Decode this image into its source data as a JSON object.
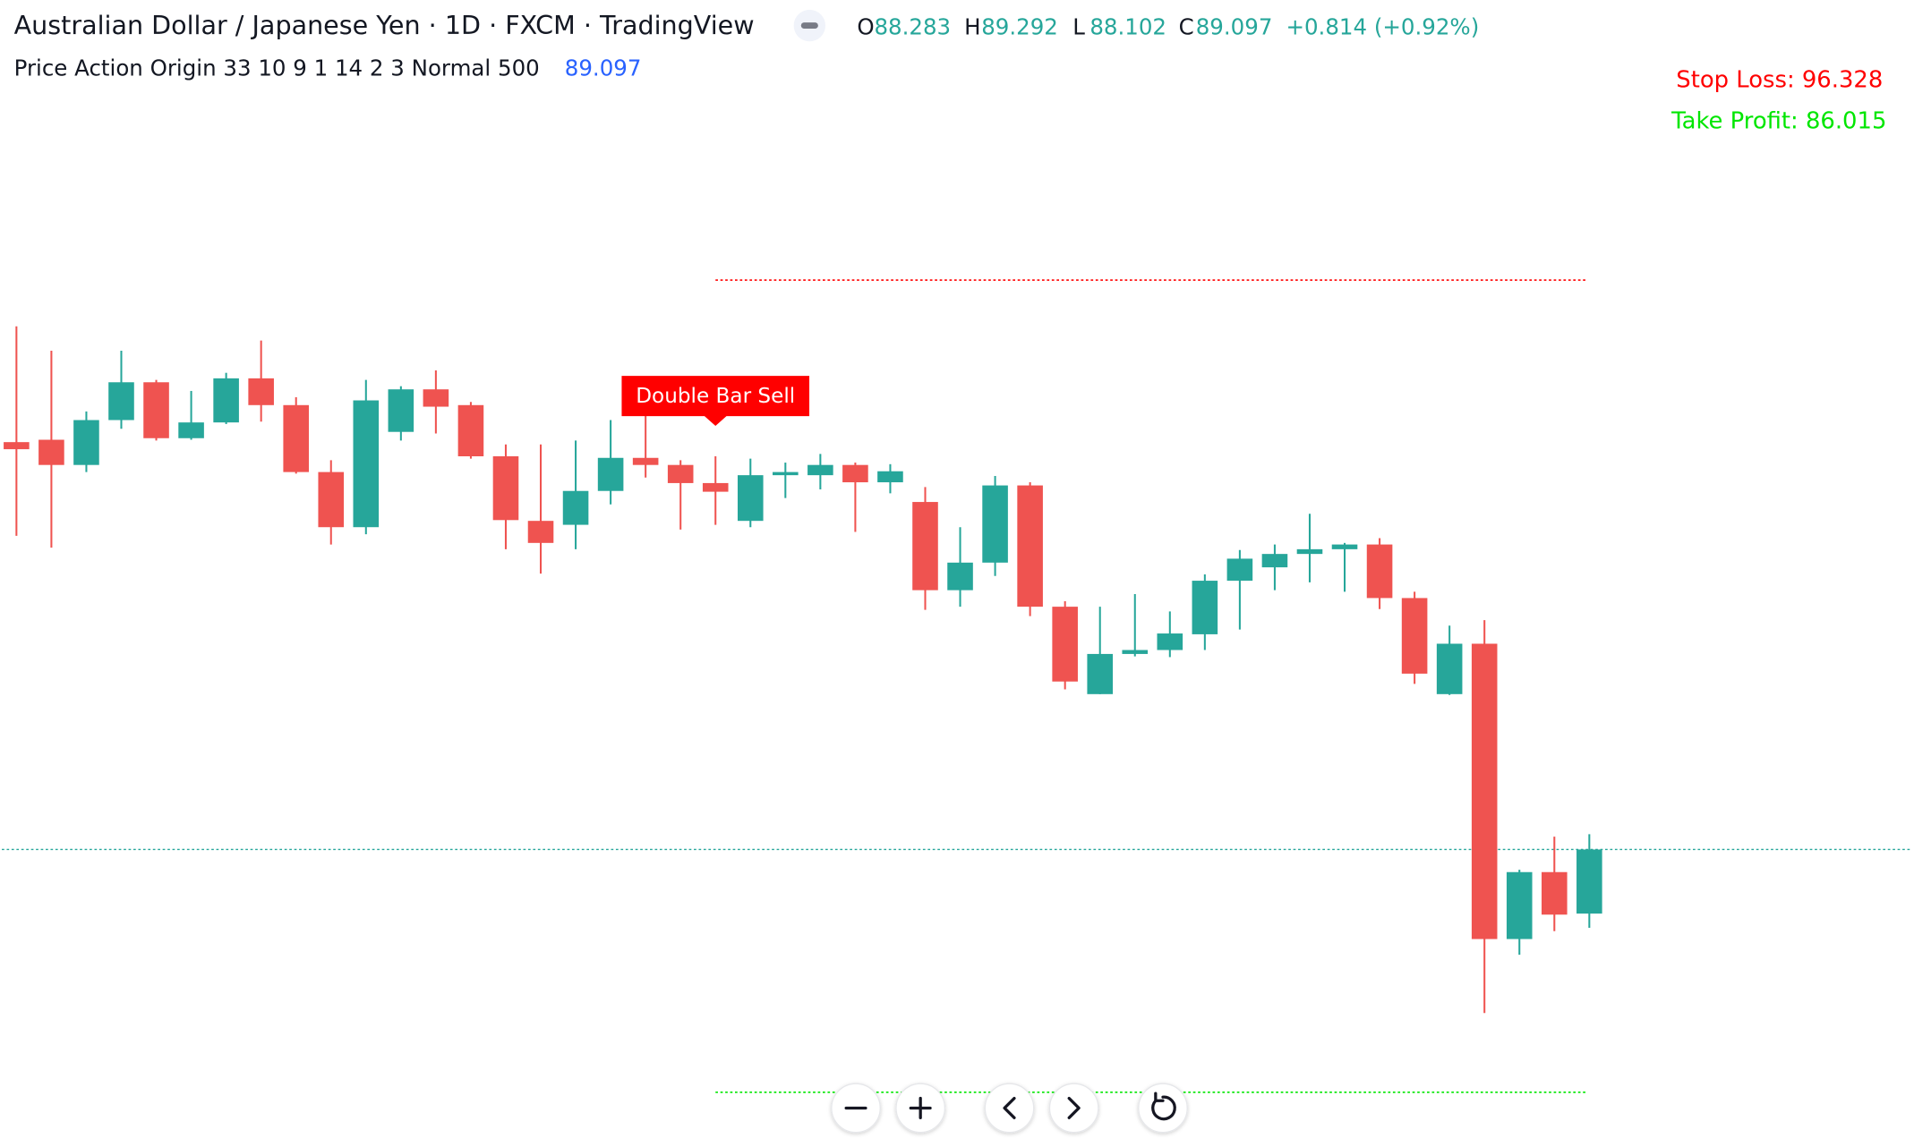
{
  "chart_data": {
    "type": "candlestick",
    "title": "Australian Dollar / Japanese Yen · 1D · FXCM · TradingView",
    "ohlc_letters": [
      "O",
      "H",
      "L",
      "C"
    ],
    "change": "+0.814 (+0.92%)",
    "indicator": "Price Action Origin 33 10 9 1 14 2 3 Normal 500",
    "annotation": "Double Bar Sell",
    "stop_loss": {
      "value": 96.328,
      "label": "Stop Loss: 96.328"
    },
    "take_profit": {
      "value": 86.015,
      "label": "Take Profit: 86.015"
    },
    "up_color": "#26a69a",
    "down_color": "#ef5350",
    "open": [
      94.27,
      94.3,
      93.98,
      94.55,
      95.03,
      94.32,
      94.52,
      95.08,
      94.74,
      93.89,
      93.19,
      94.4,
      94.94,
      94.74,
      94.09,
      93.27,
      93.22,
      93.65,
      94.07,
      93.98,
      93.75,
      93.27,
      93.85,
      93.85,
      93.98,
      93.76,
      93.51,
      92.39,
      92.74,
      93.72,
      92.18,
      91.07,
      91.58,
      91.63,
      91.83,
      92.51,
      92.68,
      92.85,
      92.91,
      92.97,
      92.29,
      91.07,
      91.71,
      87.96,
      88.81,
      88.283
    ],
    "high": [
      95.74,
      95.43,
      94.66,
      95.43,
      95.06,
      94.92,
      95.15,
      95.56,
      94.84,
      94.04,
      95.06,
      94.98,
      95.18,
      94.78,
      94.24,
      94.24,
      94.29,
      94.55,
      94.63,
      94.04,
      94.09,
      94.06,
      94.01,
      94.12,
      94.01,
      93.99,
      93.7,
      93.19,
      93.84,
      93.76,
      92.25,
      92.18,
      92.34,
      92.12,
      92.59,
      92.9,
      92.97,
      93.36,
      92.99,
      93.05,
      92.37,
      91.94,
      92.01,
      88.84,
      89.26,
      89.292
    ],
    "low": [
      93.08,
      92.93,
      93.89,
      94.44,
      94.29,
      94.3,
      94.5,
      94.53,
      93.87,
      92.97,
      93.1,
      94.29,
      94.38,
      94.06,
      92.91,
      92.6,
      92.91,
      93.48,
      93.82,
      93.16,
      93.22,
      93.19,
      93.56,
      93.67,
      93.13,
      93.62,
      92.14,
      92.18,
      92.57,
      92.06,
      91.13,
      91.07,
      91.55,
      91.54,
      91.63,
      91.89,
      92.39,
      92.49,
      92.37,
      92.15,
      91.2,
      91.06,
      87.02,
      87.76,
      88.06,
      88.102
    ],
    "close": [
      94.18,
      93.98,
      94.55,
      95.03,
      94.32,
      94.52,
      95.08,
      94.74,
      93.89,
      93.19,
      94.8,
      94.94,
      94.72,
      94.09,
      93.28,
      92.99,
      93.65,
      94.07,
      93.98,
      93.75,
      93.64,
      93.85,
      93.89,
      93.98,
      93.76,
      93.9,
      92.39,
      92.74,
      93.72,
      92.18,
      91.23,
      91.58,
      91.63,
      91.84,
      92.51,
      92.79,
      92.85,
      92.91,
      92.97,
      92.29,
      91.33,
      91.71,
      87.96,
      88.81,
      88.27,
      89.097
    ]
  }
}
